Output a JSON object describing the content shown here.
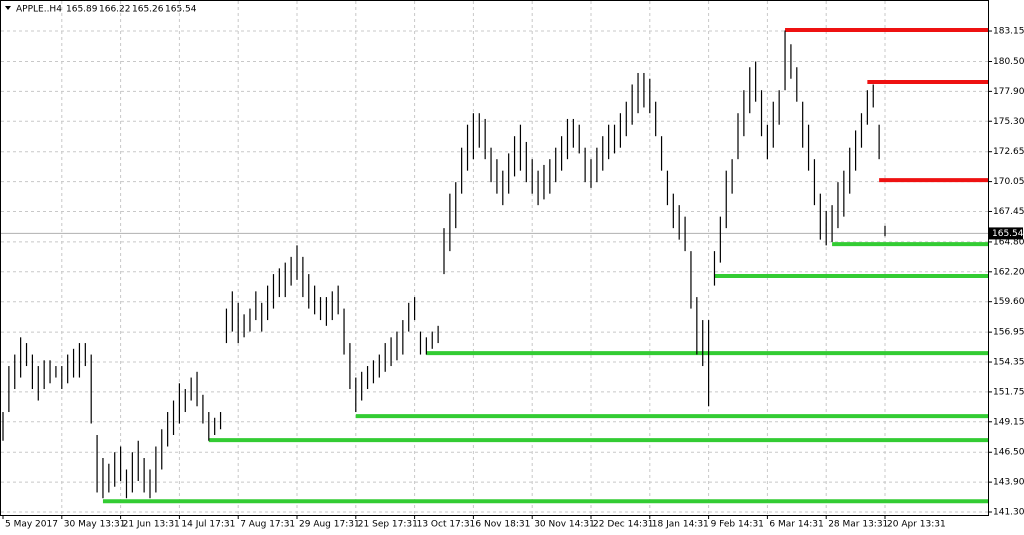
{
  "chart_data": {
    "type": "hl-bar",
    "symbol": "APPLE..H4",
    "ohlc": [
      165.89,
      166.22,
      165.26,
      165.54
    ],
    "last_price": 165.54,
    "color": "#000000",
    "categories": [
      "5 May 2017",
      null,
      null,
      null,
      null,
      null,
      null,
      null,
      null,
      null,
      "30 May 13:31",
      null,
      null,
      null,
      null,
      null,
      null,
      null,
      null,
      null,
      "21 Jun 13:31",
      null,
      null,
      null,
      null,
      null,
      null,
      null,
      null,
      null,
      "14 Jul 17:31",
      null,
      null,
      null,
      null,
      null,
      null,
      null,
      null,
      null,
      "7 Aug 17:31",
      null,
      null,
      null,
      null,
      null,
      null,
      null,
      null,
      null,
      "29 Aug 17:31",
      null,
      null,
      null,
      null,
      null,
      null,
      null,
      null,
      null,
      "21 Sep 17:31",
      null,
      null,
      null,
      null,
      null,
      null,
      null,
      null,
      null,
      "13 Oct 17:31",
      null,
      null,
      null,
      null,
      null,
      null,
      null,
      null,
      null,
      "6 Nov 18:31",
      null,
      null,
      null,
      null,
      null,
      null,
      null,
      null,
      null,
      "30 Nov 14:31",
      null,
      null,
      null,
      null,
      null,
      null,
      null,
      null,
      null,
      "22 Dec 14:31",
      null,
      null,
      null,
      null,
      null,
      null,
      null,
      null,
      null,
      "18 Jan 14:31",
      null,
      null,
      null,
      null,
      null,
      null,
      null,
      null,
      null,
      "9 Feb 14:31",
      null,
      null,
      null,
      null,
      null,
      null,
      null,
      null,
      null,
      "6 Mar 14:31",
      null,
      null,
      null,
      null,
      null,
      null,
      null,
      null,
      null,
      "28 Mar 13:31",
      null,
      null,
      null,
      null,
      null,
      null,
      null,
      null,
      null,
      "20 Apr 13:31"
    ],
    "high": [
      150,
      154,
      155,
      156.5,
      156,
      155,
      154,
      154.5,
      154.5,
      154,
      154,
      155,
      155.5,
      156,
      156,
      155,
      148,
      146,
      145.5,
      146.5,
      147,
      145,
      146.5,
      147.5,
      146,
      145,
      147,
      148.5,
      150,
      151,
      152.5,
      152,
      153,
      153.5,
      151.5,
      150,
      149.5,
      150,
      159,
      160.5,
      159.5,
      158.5,
      159,
      160.5,
      159.5,
      161,
      162,
      162.5,
      163,
      163.5,
      164.5,
      163.5,
      162,
      161,
      160,
      160,
      160.5,
      161,
      159,
      156,
      153,
      153.5,
      154,
      154.5,
      155,
      156,
      156.5,
      157,
      158,
      159.5,
      160,
      157,
      156.5,
      157,
      157.5,
      166,
      169,
      170,
      173,
      175,
      176,
      176,
      175.5,
      173,
      172,
      171,
      172.5,
      174,
      175,
      173.5,
      172,
      171,
      171.5,
      172,
      173,
      174,
      175.5,
      175.5,
      175,
      173,
      172,
      173,
      174,
      175,
      175,
      176,
      177,
      178.5,
      179.5,
      179.5,
      179,
      177,
      174,
      171,
      169,
      168,
      167,
      164,
      160,
      158,
      158,
      164,
      167,
      171,
      172,
      176,
      178,
      180,
      180.5,
      178,
      175,
      177,
      178,
      183.2,
      182,
      180,
      177,
      175,
      172,
      169,
      167.5,
      168,
      170,
      171,
      173,
      174.5,
      176,
      178,
      178.5,
      175,
      166.2
    ],
    "low": [
      147.5,
      150,
      152,
      153,
      154,
      152,
      151,
      152,
      152.5,
      153,
      152,
      152.5,
      153,
      153,
      154,
      149,
      143,
      142.5,
      143,
      143.5,
      144,
      142.5,
      143,
      144,
      143,
      142.5,
      143,
      145,
      147,
      148,
      149,
      150,
      151,
      150.5,
      149,
      147.5,
      148,
      148.5,
      156,
      157,
      156,
      156.5,
      157,
      158,
      157,
      158,
      159,
      160,
      160,
      161,
      161.5,
      160,
      159,
      158.5,
      158,
      157.5,
      158,
      158.5,
      155,
      152,
      150,
      151,
      152,
      152.5,
      153,
      153.5,
      154,
      154.5,
      155,
      157,
      158,
      155,
      155,
      155.5,
      156,
      162,
      164,
      166,
      169,
      171,
      172,
      173,
      172,
      170,
      169,
      168,
      169,
      170.5,
      171,
      170,
      169,
      168,
      168.5,
      169,
      170,
      171,
      172,
      173,
      172.5,
      170,
      169.5,
      170,
      171,
      172,
      172.5,
      173,
      174,
      175,
      176,
      176.5,
      176,
      174,
      171,
      168,
      166,
      165,
      164,
      159,
      155,
      154,
      150.5,
      161,
      163,
      166,
      169,
      172,
      174,
      176,
      177,
      174,
      172,
      173,
      175,
      178,
      179,
      177,
      173,
      171,
      168,
      165,
      164.5,
      164.8,
      166,
      167,
      169,
      171,
      173,
      175,
      176.5,
      172,
      165.3
    ],
    "levels": [
      {
        "value": 142.24,
        "start": 17,
        "color": "#33cc33"
      },
      {
        "value": 147.55,
        "start": 35,
        "color": "#33cc33"
      },
      {
        "value": 149.64,
        "start": 60,
        "color": "#33cc33"
      },
      {
        "value": 155.13,
        "start": 72,
        "color": "#33cc33"
      },
      {
        "value": 161.83,
        "start": 121,
        "color": "#33cc33"
      },
      {
        "value": 164.61,
        "start": 141,
        "color": "#33cc33"
      },
      {
        "value": 183.24,
        "start": 133,
        "color": "#ee1111"
      },
      {
        "value": 178.71,
        "start": 147,
        "color": "#ee1111"
      },
      {
        "value": 170.18,
        "start": 149,
        "color": "#ee1111"
      }
    ],
    "ylim": [
      141.04,
      185.85
    ],
    "yticks": [
      {
        "value": 141.3,
        "label": "141.30"
      },
      {
        "value": 143.9,
        "label": "143.90"
      },
      {
        "value": 146.5,
        "label": "146.50"
      },
      149.15,
      151.75,
      154.35,
      156.95,
      {
        "value": 159.6,
        "label": "159.60"
      },
      {
        "value": 162.2,
        "label": "162.20"
      },
      {
        "value": 164.8,
        "label": "164.80"
      },
      167.45,
      170.05,
      172.65,
      {
        "value": 175.3,
        "label": "175.30"
      },
      {
        "value": 177.9,
        "label": "177.90"
      },
      {
        "value": 180.5,
        "label": "180.50"
      },
      183.15
    ],
    "grid": true
  }
}
